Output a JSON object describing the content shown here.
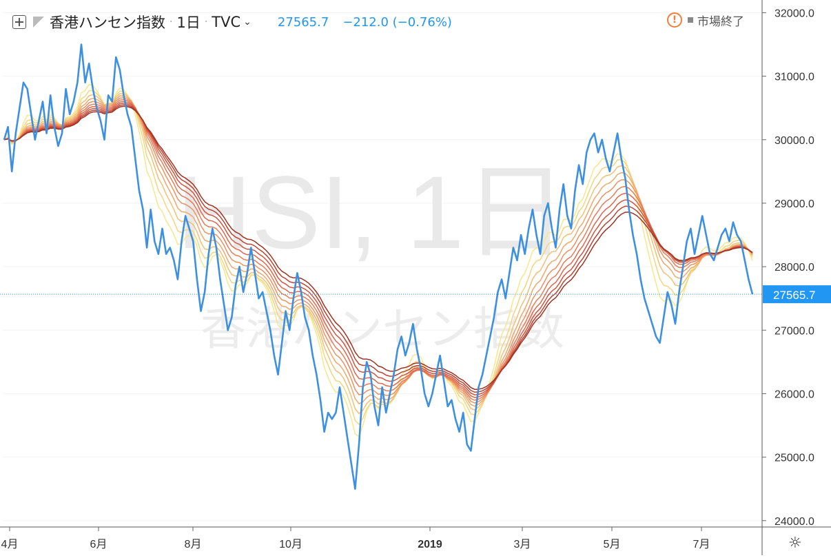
{
  "header": {
    "symbol_name": "香港ハンセン指数",
    "interval": "1日",
    "exchange": "TVC",
    "last_price": "27565.7",
    "change": "−212.0 (−0.76%)",
    "market_status": "市場終了"
  },
  "watermark": {
    "line1": "HSI, 1日",
    "line2": "香港ハンセン指数"
  },
  "colors": {
    "price_line": "#3d8fe0",
    "ribbon": [
      "#f7e78a",
      "#f5d47d",
      "#f3bf74",
      "#f0a86a",
      "#ec9160",
      "#e77b56",
      "#de664b",
      "#cf5440",
      "#b84331",
      "#9e3322"
    ],
    "accent": "#2196f3"
  },
  "chart_data": {
    "type": "line",
    "title": "香港ハンセン指数",
    "x_tick_labels": [
      "4月",
      "6月",
      "8月",
      "10月",
      "2019",
      "3月",
      "5月",
      "7月"
    ],
    "y_tick_labels": [
      "32000.0",
      "31000.0",
      "30000.0",
      "29000.0",
      "28000.0",
      "27000.0",
      "26000.0",
      "25000.0",
      "24000.0"
    ],
    "ylim": [
      23900,
      32200
    ],
    "last_value_label": "27565.7",
    "series": [
      {
        "values": [
          30000,
          30200,
          29500,
          30100,
          30500,
          30900,
          30800,
          30400,
          30000,
          30300,
          30600,
          30100,
          30700,
          30200,
          29900,
          30100,
          30800,
          30400,
          30600,
          30900,
          31500,
          30900,
          31200,
          30800,
          30500,
          30300,
          30000,
          30700,
          30600,
          31300,
          31100,
          30700,
          30400,
          30200,
          29700,
          29200,
          28900,
          28300,
          28900,
          28400,
          28200,
          28600,
          28200,
          28300,
          28100,
          27800,
          28400,
          28800,
          28600,
          28400,
          27800,
          27300,
          27600,
          28200,
          28600,
          28300,
          27800,
          27400,
          27000,
          27200,
          27700,
          28000,
          27600,
          27900,
          28300,
          27900,
          27500,
          27600,
          27300,
          27000,
          26600,
          26300,
          26800,
          27300,
          27000,
          27500,
          27900,
          27600,
          27200,
          27000,
          26600,
          26300,
          25900,
          25400,
          25700,
          25600,
          25700,
          26100,
          25700,
          25300,
          24900,
          24500,
          25200,
          26100,
          26500,
          26300,
          25800,
          25500,
          26100,
          25700,
          26000,
          26300,
          26700,
          26900,
          26600,
          26800,
          27100,
          26700,
          26400,
          26000,
          25800,
          26000,
          26300,
          26600,
          26200,
          25800,
          25900,
          25600,
          25400,
          25700,
          25200,
          25100,
          25600,
          26100,
          26300,
          26600,
          26900,
          27200,
          27600,
          27800,
          27500,
          27900,
          28300,
          28100,
          28500,
          28200,
          28600,
          28900,
          28500,
          28200,
          28800,
          29000,
          28600,
          28300,
          28900,
          29300,
          28800,
          28600,
          29200,
          29600,
          29300,
          29800,
          30000,
          30100,
          29800,
          30000,
          29700,
          29500,
          29800,
          30100,
          29700,
          29400,
          28900,
          28500,
          28200,
          27800,
          27500,
          27300,
          27100,
          26900,
          26800,
          27200,
          27600,
          27400,
          27100,
          27600,
          28000,
          28400,
          28600,
          28200,
          28500,
          28800,
          28500,
          28200,
          28100,
          28300,
          28500,
          28600,
          28400,
          28700,
          28500,
          28400,
          28100,
          27800,
          27565.7
        ]
      }
    ],
    "ribbon_periods": [
      8,
      11,
      14,
      17,
      20,
      23,
      26,
      29,
      32,
      35
    ]
  }
}
